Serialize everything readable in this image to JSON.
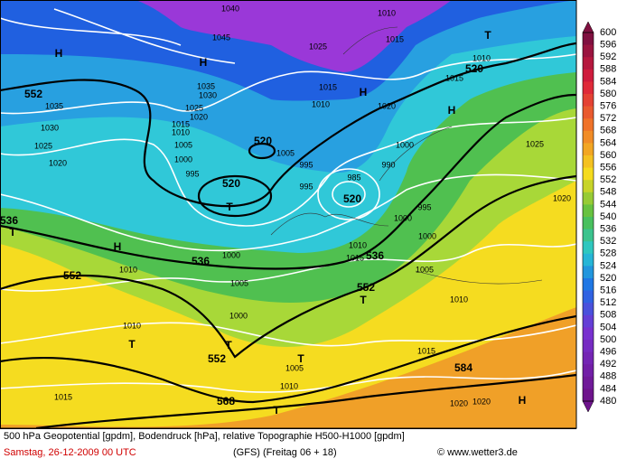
{
  "colorbar": {
    "labels": [
      600,
      596,
      592,
      588,
      584,
      580,
      576,
      572,
      568,
      564,
      560,
      556,
      552,
      548,
      544,
      540,
      536,
      532,
      528,
      524,
      520,
      516,
      512,
      508,
      504,
      500,
      496,
      492,
      488,
      484,
      480
    ]
  },
  "map_labels": [
    "H",
    "1040",
    "1045",
    "H",
    "1025",
    "1010",
    "1015",
    "T",
    "520",
    "1010",
    "1015",
    "552",
    "1035",
    "1030",
    "1025",
    "1020",
    "1035",
    "1030",
    "1025",
    "1020",
    "1015",
    "1010",
    "1005",
    "1000",
    "995",
    "520",
    "1005",
    "H",
    "1015",
    "1010",
    "1020",
    "H",
    "1000",
    "990",
    "1025",
    "985",
    "520",
    "995",
    "995",
    "520",
    "T",
    "1020",
    "995",
    "1000",
    "1000",
    "H",
    "1010",
    "1000",
    "536",
    "1010",
    "1015",
    "536",
    "1005",
    "552",
    "1005",
    "552",
    "T",
    "1010",
    "1000",
    "1010",
    "T",
    "T",
    "552",
    "T",
    "1005",
    "1015",
    "584",
    "1010",
    "1015",
    "568",
    "T",
    "1020",
    "1020",
    "H",
    "536",
    "T"
  ],
  "footer": {
    "description": "500 hPa Geopotential [gpdm], Bodendruck [hPa], relative Topographie H500-H1000 [gpdm]",
    "date": "Samstag, 26-12-2009  00 UTC",
    "model": "(GFS)  (Freitag 06 + 18)",
    "source": "© www.wetter3.de"
  }
}
